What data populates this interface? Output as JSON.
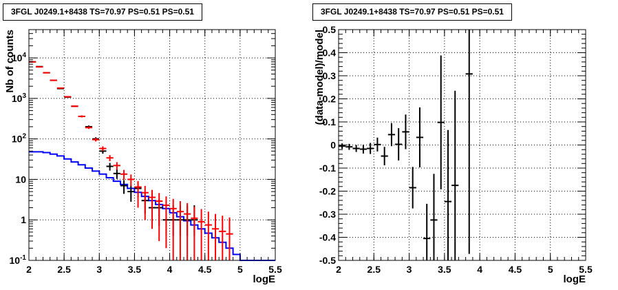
{
  "chart_data": [
    {
      "type": "histogram",
      "title": "3FGL J0249.1+8438 TS=70.97 PS=0.51 PS=0.51",
      "xlabel": "logE",
      "ylabel": "Nb of counts",
      "xlim": [
        2,
        5.5
      ],
      "ylim": [
        0.1,
        50000
      ],
      "yscale": "log",
      "grid": true,
      "x_ticks": [
        "2",
        "2.5",
        "3",
        "3.5",
        "4",
        "4.5",
        "5",
        "5.5"
      ],
      "y_ticks": [
        "10^{-1}",
        "1",
        "10",
        "10^{2}",
        "10^{3}",
        "10^{4}"
      ],
      "bin_width": 0.1,
      "series": [
        {
          "color": "#000000",
          "style": "points-with-errors",
          "x": [
            2.05,
            2.15,
            2.25,
            2.35,
            2.45,
            2.55,
            2.65,
            2.75,
            2.85,
            2.95,
            3.05,
            3.15,
            3.25,
            3.35,
            3.45,
            3.55,
            3.65,
            3.75,
            3.85,
            3.95,
            4.05,
            4.15,
            4.25,
            4.35
          ],
          "y": [
            8000,
            6100,
            4300,
            2800,
            1750,
            1080,
            640,
            360,
            200,
            100,
            50,
            21,
            14,
            7,
            5,
            6,
            3,
            2,
            2,
            1,
            1,
            1,
            1,
            1
          ],
          "yerr_low": [
            89,
            78,
            65,
            53,
            42,
            33,
            25,
            19,
            14,
            10,
            7,
            4.5,
            3.7,
            2.6,
            2.2,
            2.4,
            1.6,
            1.3,
            1.3,
            0.6,
            0.6,
            0.6,
            0.6,
            0.6
          ],
          "yerr_high": [
            89,
            78,
            65,
            53,
            42,
            33,
            25,
            19,
            14,
            10,
            7,
            4.5,
            3.7,
            2.6,
            2.2,
            2.4,
            1.6,
            1.3,
            1.3,
            1.3,
            1.3,
            1.3,
            1.3,
            1.3
          ]
        },
        {
          "color": "#ff0000",
          "style": "points-with-errors",
          "x": [
            2.05,
            2.15,
            2.25,
            2.35,
            2.45,
            2.55,
            2.65,
            2.75,
            2.85,
            2.95,
            3.05,
            3.15,
            3.25,
            3.35,
            3.45,
            3.55,
            3.65,
            3.75,
            3.85,
            3.95,
            4.05,
            4.15,
            4.25,
            4.35,
            4.45,
            4.55,
            4.65,
            4.75,
            4.85
          ],
          "y": [
            8000,
            6000,
            4300,
            2800,
            1800,
            1100,
            640,
            360,
            190,
            96,
            58,
            34,
            22,
            13.5,
            10,
            6.5,
            4.7,
            3.6,
            2.9,
            2.3,
            1.9,
            1.6,
            1.4,
            1.1,
            0.9,
            0.75,
            0.6,
            0.52,
            0.45
          ],
          "yerr_low": [
            89,
            77,
            66,
            53,
            42,
            33,
            25,
            19,
            13.8,
            9.8,
            7.6,
            5.8,
            4.7,
            3.7,
            3.2,
            4.5,
            3.7,
            3.0,
            2.6,
            2.1,
            1.8,
            1.5,
            1.35,
            1.05,
            0.87,
            0.72,
            0.58,
            0.5,
            0.43
          ],
          "yerr_high": [
            89,
            77,
            66,
            53,
            42,
            33,
            25,
            19,
            13.8,
            9.8,
            7.6,
            5.8,
            4.7,
            3.7,
            3.2,
            2.6,
            2.2,
            1.9,
            1.7,
            1.5,
            1.4,
            1.3,
            1.2,
            1.0,
            0.95,
            0.85,
            0.8,
            0.75,
            0.7
          ]
        },
        {
          "color": "#0000ff",
          "style": "step",
          "x_edges": [
            2.0,
            2.1,
            2.2,
            2.3,
            2.4,
            2.5,
            2.6,
            2.7,
            2.8,
            2.9,
            3.0,
            3.1,
            3.2,
            3.3,
            3.4,
            3.5,
            3.6,
            3.7,
            3.8,
            3.9,
            4.0,
            4.1,
            4.2,
            4.3,
            4.4,
            4.5,
            4.6,
            4.7,
            4.8,
            4.9,
            5.0,
            5.1,
            5.2,
            5.3,
            5.4,
            5.5
          ],
          "y": [
            48,
            48,
            46,
            42,
            38,
            32,
            27,
            23,
            19,
            16,
            13.5,
            11,
            9,
            7.5,
            6,
            4.8,
            3.8,
            3.0,
            2.4,
            1.9,
            1.5,
            1.2,
            0.95,
            0.75,
            0.6,
            0.47,
            0.36,
            0.28,
            0.2,
            0.14,
            0.1,
            0.1,
            0.1,
            0.1,
            0.1
          ]
        }
      ]
    },
    {
      "type": "scatter",
      "title": "3FGL J0249.1+8438 TS=70.97 PS=0.51 PS=0.51",
      "xlabel": "logE",
      "ylabel": "(data-model)/model",
      "xlim": [
        2,
        5.5
      ],
      "ylim": [
        -0.5,
        0.5
      ],
      "grid": true,
      "x_ticks": [
        "2",
        "2.5",
        "3",
        "3.5",
        "4",
        "4.5",
        "5",
        "5.5"
      ],
      "y_ticks": [
        "-0.5",
        "-0.4",
        "-0.3",
        "-0.2",
        "-0.1",
        "0",
        "0.1",
        "0.2",
        "0.3",
        "0.4",
        "0.5"
      ],
      "series": [
        {
          "color": "#000000",
          "style": "points-with-errors",
          "x": [
            2.05,
            2.15,
            2.25,
            2.35,
            2.45,
            2.55,
            2.65,
            2.75,
            2.85,
            2.95,
            3.05,
            3.15,
            3.25,
            3.35,
            3.45,
            3.55,
            3.65,
            3.85
          ],
          "y": [
            -0.005,
            -0.008,
            -0.015,
            -0.018,
            -0.015,
            0.002,
            -0.048,
            0.045,
            0.003,
            0.057,
            -0.185,
            0.033,
            -0.405,
            -0.325,
            0.098,
            -0.245,
            -0.175,
            0.308
          ],
          "yerr": [
            0.012,
            0.013,
            0.015,
            0.019,
            0.024,
            0.03,
            0.04,
            0.05,
            0.07,
            0.075,
            0.09,
            0.13,
            0.15,
            0.2,
            0.29,
            0.31,
            0.41,
            0.78
          ]
        }
      ]
    }
  ]
}
